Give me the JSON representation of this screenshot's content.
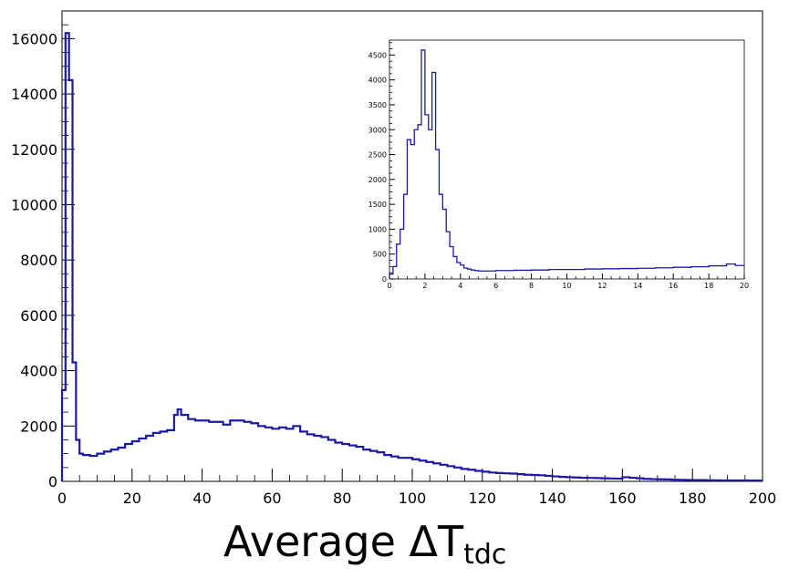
{
  "colors": {
    "histogram_line": "#1a1aa6",
    "frame": "#000000",
    "background": "#ffffff"
  },
  "chart_data": [
    {
      "type": "line",
      "style": "step-histogram",
      "title": "",
      "xlabel": "Average ΔT",
      "xlabel_subscript": "tdc",
      "ylabel": "",
      "xlim": [
        0,
        200
      ],
      "ylim": [
        0,
        17000
      ],
      "grid": false,
      "xticks": [
        0,
        20,
        40,
        60,
        80,
        100,
        120,
        140,
        160,
        180,
        200
      ],
      "yticks": [
        0,
        2000,
        4000,
        6000,
        8000,
        10000,
        12000,
        14000,
        16000
      ],
      "xtick_labels": [
        "0",
        "20",
        "40",
        "60",
        "80",
        "100",
        "120",
        "140",
        "160",
        "180",
        "200"
      ],
      "ytick_labels": [
        "0",
        "2000",
        "4000",
        "6000",
        "8000",
        "10000",
        "12000",
        "14000",
        "16000"
      ],
      "series": [
        {
          "x": [
            0,
            1,
            2,
            3,
            4,
            5,
            6,
            8,
            10,
            12,
            14,
            16,
            18,
            20,
            22,
            24,
            26,
            28,
            30,
            32,
            33,
            34,
            36,
            38,
            40,
            42,
            44,
            46,
            48,
            50,
            52,
            54,
            56,
            58,
            60,
            62,
            64,
            66,
            68,
            70,
            72,
            74,
            76,
            78,
            80,
            82,
            84,
            86,
            88,
            90,
            92,
            94,
            96,
            98,
            100,
            102,
            104,
            106,
            108,
            110,
            112,
            114,
            116,
            118,
            120,
            122,
            124,
            126,
            128,
            130,
            132,
            134,
            136,
            138,
            140,
            142,
            144,
            146,
            148,
            150,
            152,
            154,
            156,
            158,
            160,
            162,
            164,
            166,
            168,
            170,
            172,
            174,
            176,
            178,
            180,
            182,
            184,
            186,
            188,
            190,
            192,
            194,
            196,
            198,
            200
          ],
          "values": [
            3300,
            16200,
            14500,
            4300,
            1500,
            1000,
            950,
            920,
            1000,
            1080,
            1150,
            1220,
            1350,
            1450,
            1550,
            1650,
            1750,
            1800,
            1850,
            2400,
            2600,
            2400,
            2250,
            2200,
            2200,
            2150,
            2150,
            2050,
            2200,
            2200,
            2150,
            2100,
            2000,
            1950,
            1900,
            1950,
            1900,
            2000,
            1800,
            1700,
            1650,
            1600,
            1500,
            1400,
            1350,
            1300,
            1250,
            1150,
            1100,
            1050,
            950,
            900,
            850,
            850,
            800,
            750,
            700,
            650,
            600,
            550,
            500,
            450,
            420,
            380,
            350,
            320,
            300,
            290,
            280,
            260,
            240,
            230,
            220,
            200,
            180,
            160,
            150,
            140,
            130,
            125,
            120,
            110,
            105,
            100,
            150,
            130,
            110,
            90,
            80,
            75,
            70,
            60,
            55,
            50,
            45,
            45,
            40,
            38,
            35,
            35,
            35,
            32,
            30,
            30,
            30
          ]
        }
      ]
    },
    {
      "type": "line",
      "style": "step-histogram",
      "placement": "inset-top-right",
      "title": "",
      "xlabel": "",
      "ylabel": "",
      "xlim": [
        0,
        20
      ],
      "ylim": [
        0,
        4800
      ],
      "grid": false,
      "xticks": [
        0,
        2,
        4,
        6,
        8,
        10,
        12,
        14,
        16,
        18,
        20
      ],
      "yticks": [
        0,
        500,
        1000,
        1500,
        2000,
        2500,
        3000,
        3500,
        4000,
        4500
      ],
      "xtick_labels": [
        "0",
        "2",
        "4",
        "6",
        "8",
        "10",
        "12",
        "14",
        "16",
        "18",
        "20"
      ],
      "ytick_labels": [
        "0",
        "500",
        "1000",
        "1500",
        "2000",
        "2500",
        "3000",
        "3500",
        "4000",
        "4500"
      ],
      "series": [
        {
          "x": [
            0,
            0.2,
            0.4,
            0.6,
            0.8,
            1.0,
            1.2,
            1.4,
            1.6,
            1.8,
            2.0,
            2.2,
            2.4,
            2.6,
            2.8,
            3.0,
            3.2,
            3.4,
            3.6,
            3.8,
            4.0,
            4.2,
            4.4,
            4.6,
            4.8,
            5.0,
            5.5,
            6,
            7,
            8,
            9,
            10,
            11,
            12,
            13,
            14,
            15,
            16,
            17,
            18,
            19,
            19.5,
            20
          ],
          "values": [
            100,
            250,
            700,
            1000,
            1700,
            2800,
            2700,
            3000,
            3100,
            4600,
            3300,
            3000,
            4150,
            2600,
            1700,
            1400,
            950,
            650,
            450,
            330,
            280,
            220,
            200,
            180,
            170,
            160,
            160,
            170,
            175,
            180,
            190,
            190,
            200,
            205,
            210,
            215,
            225,
            235,
            245,
            265,
            300,
            270,
            260
          ]
        }
      ]
    }
  ]
}
